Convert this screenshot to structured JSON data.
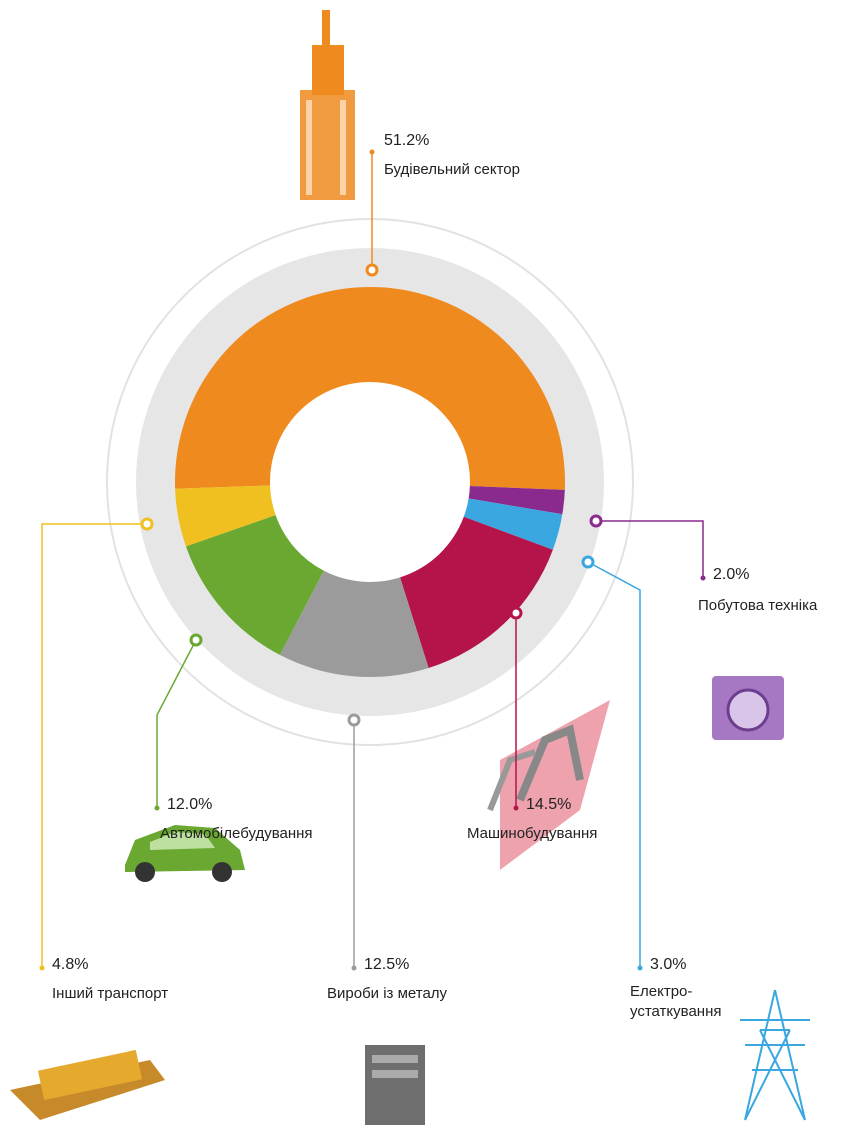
{
  "chart_data": {
    "type": "donut",
    "categories": [
      "Будівельний сектор",
      "Побутова техніка",
      "Електро-\nустаткування",
      "Машинобудування",
      "Вироби із металу",
      "Автомобілебудування",
      "Інший транспорт"
    ],
    "values": [
      51.2,
      2.0,
      3.0,
      14.5,
      12.5,
      12.0,
      4.8
    ],
    "value_labels": [
      "51.2%",
      "2.0%",
      "3.0%",
      "14.5%",
      "12.5%",
      "12.0%",
      "4.8%"
    ],
    "colors": [
      "#ef8a1f",
      "#8b2a8e",
      "#3aa7e0",
      "#b5144a",
      "#9b9b9b",
      "#6aa832",
      "#f0c020"
    ]
  }
}
